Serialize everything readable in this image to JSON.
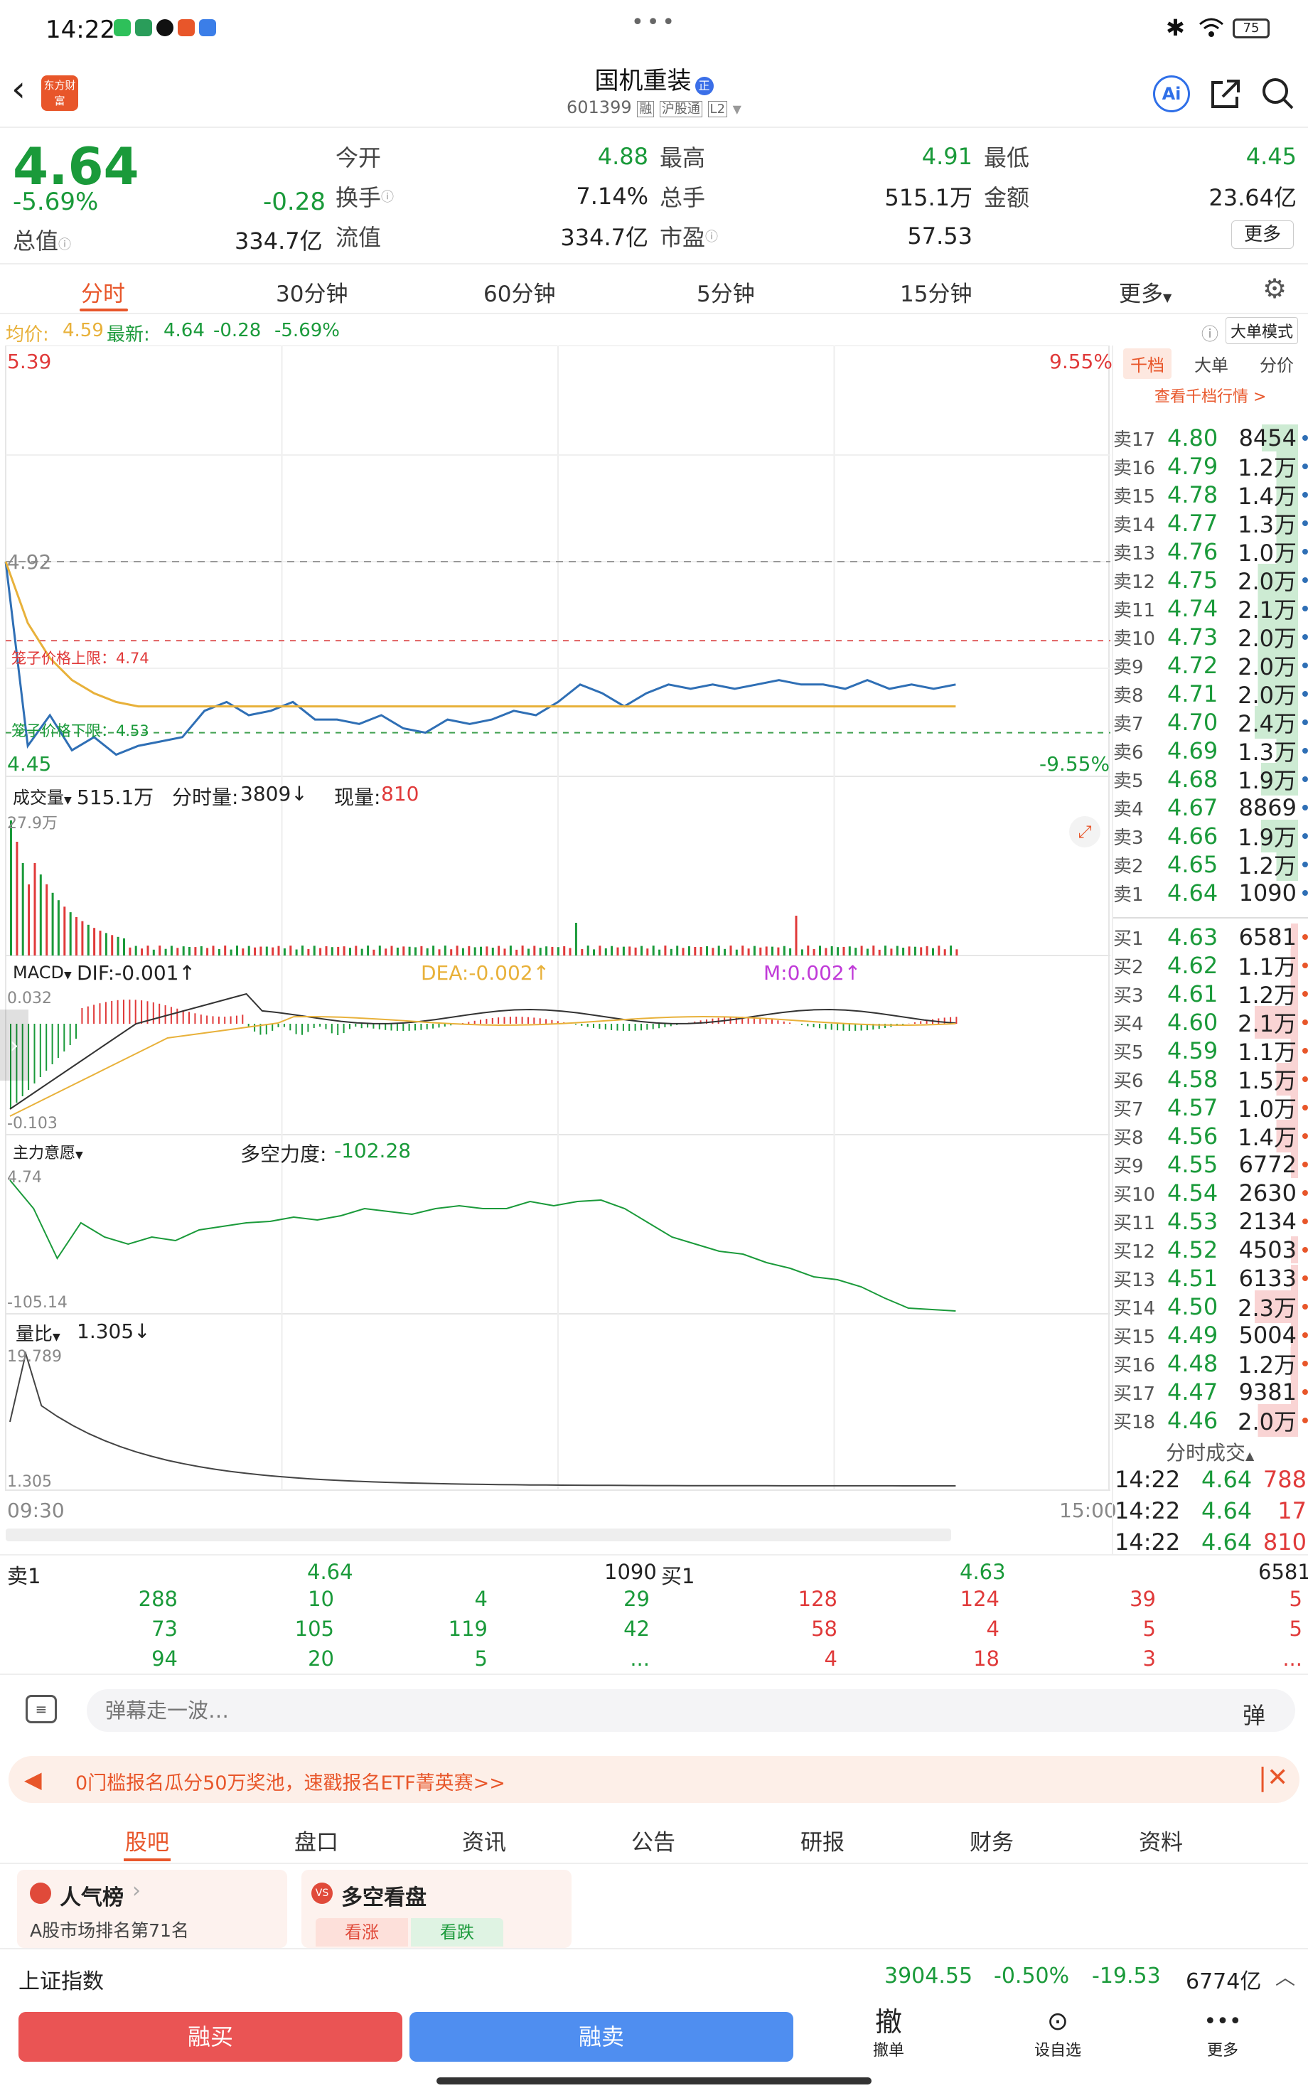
{
  "status_bar": {
    "time": "14:22",
    "battery": "75"
  },
  "header": {
    "logo": "东方财富",
    "title": "国机重装",
    "code": "601399",
    "badge_rong": "融",
    "badge_hgt": "沪股通",
    "badge_l2": "L2",
    "ai_label": "Ai"
  },
  "quote": {
    "price": "4.64",
    "change_pct": "-5.69%",
    "change": "-0.28",
    "total_value_label": "总值",
    "total_value": "334.7亿",
    "stats": [
      {
        "label": "今开",
        "value": "4.88",
        "color": "#1a9a3a"
      },
      {
        "label": "最高",
        "value": "4.91",
        "color": "#1a9a3a"
      },
      {
        "label": "最低",
        "value": "4.45",
        "color": "#1a9a3a"
      },
      {
        "label": "换手",
        "value": "7.14%",
        "color": "#222222"
      },
      {
        "label": "总手",
        "value": "515.1万",
        "color": "#222222"
      },
      {
        "label": "金额",
        "value": "23.64亿",
        "color": "#222222"
      },
      {
        "label": "流值",
        "value": "334.7亿",
        "color": "#222222"
      },
      {
        "label": "市盈",
        "value": "57.53",
        "color": "#222222"
      }
    ],
    "more_label": "更多"
  },
  "period_tabs": [
    "分时",
    "30分钟",
    "60分钟",
    "5分钟",
    "15分钟",
    "更多"
  ],
  "chart_header": {
    "avg_label": "均价:",
    "avg_value": "4.59",
    "latest_label": "最新:",
    "latest_value": "4.64",
    "latest_change": "-0.28",
    "latest_pct": "-5.69%",
    "mode_button": "大单模式"
  },
  "chart_data": {
    "type": "line",
    "title": "",
    "x_start": "09:30",
    "x_end": "15:00",
    "y_top_label": "5.39",
    "y_bottom_label": "4.45",
    "y_top_pct": "9.55%",
    "y_bottom_pct": "-9.55%",
    "ref_label": "4.92",
    "upper_limit_label": "笼子价格上限：4.74",
    "lower_limit_label": "笼子价格下限：4.53",
    "ylim": [
      4.45,
      5.39
    ],
    "prev_close": 4.92,
    "upper_limit": 4.74,
    "lower_limit": 4.53,
    "x_progress": [
      0,
      0.02,
      0.04,
      0.06,
      0.08,
      0.1,
      0.12,
      0.14,
      0.16,
      0.18,
      0.2,
      0.22,
      0.24,
      0.26,
      0.28,
      0.3,
      0.32,
      0.34,
      0.36,
      0.38,
      0.4,
      0.42,
      0.44,
      0.46,
      0.48,
      0.5,
      0.52,
      0.54,
      0.56,
      0.58,
      0.6,
      0.62,
      0.64,
      0.66,
      0.68,
      0.7,
      0.72,
      0.74,
      0.76,
      0.78,
      0.8,
      0.82,
      0.84,
      0.86
    ],
    "series": [
      {
        "values": [
          4.92,
          4.5,
          4.57,
          4.49,
          4.52,
          4.48,
          4.5,
          4.51,
          4.52,
          4.58,
          4.6,
          4.57,
          4.58,
          4.6,
          4.56,
          4.56,
          4.55,
          4.57,
          4.54,
          4.53,
          4.56,
          4.55,
          4.56,
          4.58,
          4.57,
          4.6,
          4.64,
          4.62,
          4.59,
          4.62,
          4.64,
          4.63,
          4.64,
          4.63,
          4.64,
          4.65,
          4.64,
          4.64,
          4.63,
          4.65,
          4.63,
          4.64,
          4.63,
          4.64
        ]
      },
      {
        "values": [
          4.92,
          4.78,
          4.7,
          4.65,
          4.62,
          4.6,
          4.59,
          4.59,
          4.59,
          4.59,
          4.59,
          4.59,
          4.59,
          4.59,
          4.59,
          4.59,
          4.59,
          4.59,
          4.59,
          4.59,
          4.59,
          4.59,
          4.59,
          4.59,
          4.59,
          4.59,
          4.59,
          4.59,
          4.59,
          4.59,
          4.59,
          4.59,
          4.59,
          4.59,
          4.59,
          4.59,
          4.59,
          4.59,
          4.59,
          4.59,
          4.59,
          4.59,
          4.59,
          4.59
        ]
      }
    ],
    "volume": {
      "label": "成交量",
      "total": "515.1万",
      "period_label": "分时量:",
      "period_value": "3809",
      "now_label": "现量:",
      "now_value": "810",
      "top_label": "27.9万"
    },
    "macd": {
      "label": "MACD",
      "dif": "DIF:-0.001",
      "dea": "DEA:-0.002",
      "m": "M:0.002",
      "top_label": "0.032",
      "bottom_label": "-0.103"
    },
    "main_force": {
      "label": "主力意愿",
      "title": "多空力度:",
      "value": "-102.28",
      "top_label": "4.74",
      "bottom_label": "-105.14"
    },
    "volume_ratio": {
      "label": "量比",
      "value": "1.305",
      "top_label": "19.789",
      "bottom_label": "1.305"
    }
  },
  "order_book": {
    "tabs": [
      "千档",
      "大单",
      "分价"
    ],
    "link": "查看千档行情 >",
    "sells": [
      {
        "label": "卖17",
        "price": "4.80",
        "vol": "8454",
        "bar": 0.6
      },
      {
        "label": "卖16",
        "price": "4.79",
        "vol": "1.2万",
        "bar": 0.35
      },
      {
        "label": "卖15",
        "price": "4.78",
        "vol": "1.4万",
        "bar": 0.35
      },
      {
        "label": "卖14",
        "price": "4.77",
        "vol": "1.3万",
        "bar": 0.35
      },
      {
        "label": "卖13",
        "price": "4.76",
        "vol": "1.0万",
        "bar": 0.35
      },
      {
        "label": "卖12",
        "price": "4.75",
        "vol": "2.0万",
        "bar": 0.65
      },
      {
        "label": "卖11",
        "price": "4.74",
        "vol": "2.1万",
        "bar": 0.65
      },
      {
        "label": "卖10",
        "price": "4.73",
        "vol": "2.0万",
        "bar": 0.65
      },
      {
        "label": "卖9",
        "price": "4.72",
        "vol": "2.0万",
        "bar": 0.65
      },
      {
        "label": "卖8",
        "price": "4.71",
        "vol": "2.0万",
        "bar": 0.65
      },
      {
        "label": "卖7",
        "price": "4.70",
        "vol": "2.4万",
        "bar": 0.7
      },
      {
        "label": "卖6",
        "price": "4.69",
        "vol": "1.3万",
        "bar": 0.35
      },
      {
        "label": "卖5",
        "price": "4.68",
        "vol": "1.9万",
        "bar": 0.6
      },
      {
        "label": "卖4",
        "price": "4.67",
        "vol": "8869",
        "bar": 0
      },
      {
        "label": "卖3",
        "price": "4.66",
        "vol": "1.9万",
        "bar": 0.6
      },
      {
        "label": "卖2",
        "price": "4.65",
        "vol": "1.2万",
        "bar": 0.35
      },
      {
        "label": "卖1",
        "price": "4.64",
        "vol": "1090",
        "bar": 0
      }
    ],
    "buys": [
      {
        "label": "买1",
        "price": "4.63",
        "vol": "6581",
        "bar": 0.12
      },
      {
        "label": "买2",
        "price": "4.62",
        "vol": "1.1万",
        "bar": 0.12
      },
      {
        "label": "买3",
        "price": "4.61",
        "vol": "1.2万",
        "bar": 0.12
      },
      {
        "label": "买4",
        "price": "4.60",
        "vol": "2.1万",
        "bar": 0.7
      },
      {
        "label": "买5",
        "price": "4.59",
        "vol": "1.1万",
        "bar": 0.12
      },
      {
        "label": "买6",
        "price": "4.58",
        "vol": "1.5万",
        "bar": 0.35
      },
      {
        "label": "买7",
        "price": "4.57",
        "vol": "1.0万",
        "bar": 0.12
      },
      {
        "label": "买8",
        "price": "4.56",
        "vol": "1.4万",
        "bar": 0.35
      },
      {
        "label": "买9",
        "price": "4.55",
        "vol": "6772",
        "bar": 0.12
      },
      {
        "label": "买10",
        "price": "4.54",
        "vol": "2630",
        "bar": 0
      },
      {
        "label": "买11",
        "price": "4.53",
        "vol": "2134",
        "bar": 0
      },
      {
        "label": "买12",
        "price": "4.52",
        "vol": "4503",
        "bar": 0.12
      },
      {
        "label": "买13",
        "price": "4.51",
        "vol": "6133",
        "bar": 0.12
      },
      {
        "label": "买14",
        "price": "4.50",
        "vol": "2.3万",
        "bar": 0.7
      },
      {
        "label": "买15",
        "price": "4.49",
        "vol": "5004",
        "bar": 0.12
      },
      {
        "label": "买16",
        "price": "4.48",
        "vol": "1.2万",
        "bar": 0.12
      },
      {
        "label": "买17",
        "price": "4.47",
        "vol": "9381",
        "bar": 0.12
      },
      {
        "label": "买18",
        "price": "4.46",
        "vol": "2.0万",
        "bar": 0.65
      }
    ],
    "trades_title": "分时成交",
    "trades": [
      {
        "time": "14:22",
        "price": "4.64",
        "vol": "788"
      },
      {
        "time": "14:22",
        "price": "4.64",
        "vol": "17"
      },
      {
        "time": "14:22",
        "price": "4.64",
        "vol": "810"
      }
    ]
  },
  "queue": {
    "sell_label": "卖1",
    "sell_price": "4.64",
    "sell_vol": "1090",
    "buy_label": "买1",
    "buy_price": "4.63",
    "buy_vol": "6581",
    "sell_rows": [
      [
        "288",
        "10",
        "4",
        "29"
      ],
      [
        "73",
        "105",
        "119",
        "42"
      ],
      [
        "94",
        "20",
        "5",
        "..."
      ]
    ],
    "buy_rows": [
      [
        "128",
        "124",
        "39",
        "5"
      ],
      [
        "58",
        "4",
        "5",
        "5"
      ],
      [
        "4",
        "18",
        "3",
        "..."
      ]
    ]
  },
  "danmu": {
    "placeholder": "弹幕走一波…",
    "button": "弹"
  },
  "banner": {
    "text": "0门槛报名瓜分50万奖池，速戳报名ETF菁英赛>>"
  },
  "news_tabs": [
    "股吧",
    "盘口",
    "资讯",
    "公告",
    "研报",
    "财务",
    "资料"
  ],
  "cards": [
    {
      "title": "人气榜",
      "sub": "A股市场排名第71名"
    },
    {
      "title": "多空看盘",
      "up": "看涨",
      "down": "看跌"
    }
  ],
  "index_bar": {
    "name": "上证指数",
    "value": "3904.55",
    "pct": "-0.50%",
    "change": "-19.53",
    "amount": "6774亿"
  },
  "bottom": {
    "buy": "融买",
    "sell": "融卖",
    "cancel_glyph": "撤",
    "cancel": "撤单",
    "alert": "设自选",
    "more": "更多"
  },
  "colors": {
    "up": "#e03a3a",
    "down": "#1a9a3a",
    "avg": "#e8b13a",
    "price_line": "#2f6fb5",
    "accent": "#e8562a"
  }
}
